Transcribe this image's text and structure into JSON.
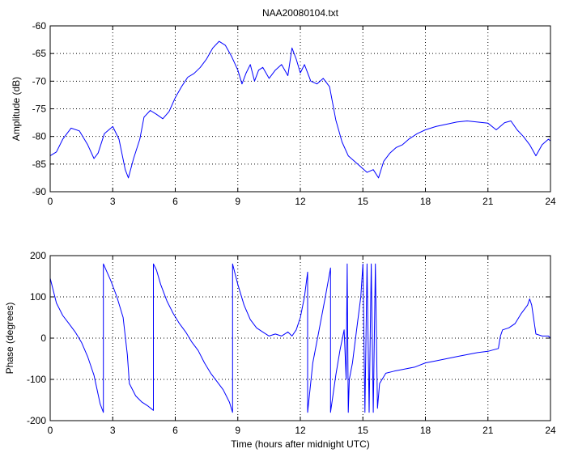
{
  "chart_data": [
    {
      "type": "line",
      "title": "NAA20080104.txt",
      "xlabel": "",
      "ylabel": "Amplitude (dB)",
      "xlim": [
        0,
        24
      ],
      "ylim": [
        -90,
        -60
      ],
      "xticks": [
        0,
        3,
        6,
        9,
        12,
        15,
        18,
        21,
        24
      ],
      "yticks": [
        -90,
        -85,
        -80,
        -75,
        -70,
        -65,
        -60
      ],
      "grid": true,
      "color": "#0000ff",
      "series": [
        {
          "x": [
            0,
            0.3,
            0.6,
            1.0,
            1.4,
            1.8,
            2.1,
            2.3,
            2.6,
            3.0,
            3.3,
            3.6,
            3.75,
            4.0,
            4.3,
            4.5,
            4.8,
            5.1,
            5.4,
            5.7,
            6.0,
            6.3,
            6.6,
            6.9,
            7.2,
            7.5,
            7.8,
            8.1,
            8.4,
            8.7,
            9.0,
            9.2,
            9.4,
            9.6,
            9.8,
            10.0,
            10.2,
            10.5,
            10.8,
            11.1,
            11.4,
            11.6,
            11.8,
            12.0,
            12.2,
            12.5,
            12.8,
            13.1,
            13.4,
            13.7,
            14.0,
            14.3,
            14.6,
            14.9,
            15.2,
            15.5,
            15.75,
            16.0,
            16.3,
            16.6,
            16.9,
            17.2,
            17.6,
            18.0,
            18.5,
            19.0,
            19.5,
            20.0,
            20.5,
            21.0,
            21.4,
            21.8,
            22.1,
            22.4,
            22.7,
            23.0,
            23.3,
            23.6,
            23.9,
            24.0
          ],
          "y": [
            -83.5,
            -82.8,
            -80.5,
            -78.5,
            -79.0,
            -81.5,
            -84.0,
            -83.0,
            -79.5,
            -78.2,
            -80.5,
            -86.0,
            -87.5,
            -84.0,
            -80.5,
            -76.5,
            -75.3,
            -76.0,
            -76.8,
            -75.5,
            -73.0,
            -71.0,
            -69.3,
            -68.6,
            -67.5,
            -66.0,
            -64.0,
            -62.8,
            -63.5,
            -65.5,
            -68.0,
            -70.5,
            -68.5,
            -67.0,
            -70.0,
            -68.0,
            -67.5,
            -69.5,
            -68.0,
            -67.0,
            -69.0,
            -64.0,
            -66.0,
            -68.5,
            -67.0,
            -70.0,
            -70.5,
            -69.5,
            -71.0,
            -77.0,
            -81.0,
            -83.5,
            -84.5,
            -85.5,
            -86.5,
            -86.0,
            -87.5,
            -84.5,
            -83.0,
            -82.0,
            -81.5,
            -80.5,
            -79.5,
            -78.8,
            -78.2,
            -77.8,
            -77.4,
            -77.2,
            -77.4,
            -77.6,
            -78.8,
            -77.5,
            -77.2,
            -78.8,
            -80.0,
            -81.5,
            -83.5,
            -81.5,
            -80.5,
            -80.8
          ]
        }
      ]
    },
    {
      "type": "line",
      "title": "",
      "xlabel": "Time (hours after midnight UTC)",
      "ylabel": "Phase (degrees)",
      "xlim": [
        0,
        24
      ],
      "ylim": [
        -200,
        200
      ],
      "xticks": [
        0,
        3,
        6,
        9,
        12,
        15,
        18,
        21,
        24
      ],
      "yticks": [
        -200,
        -100,
        0,
        100,
        200
      ],
      "grid": true,
      "color": "#0000ff",
      "series": [
        {
          "x": [
            0,
            0.3,
            0.6,
            0.9,
            1.2,
            1.5,
            1.8,
            2.1,
            2.4,
            2.55,
            2.55,
            2.9,
            3.2,
            3.5,
            3.7,
            3.8,
            4.1,
            4.4,
            4.7,
            4.95,
            4.95,
            5.1,
            5.3,
            5.6,
            5.9,
            6.2,
            6.5,
            6.8,
            7.1,
            7.4,
            7.7,
            8.0,
            8.3,
            8.6,
            8.75,
            8.75,
            9.0,
            9.3,
            9.6,
            9.9,
            10.2,
            10.5,
            10.8,
            11.1,
            11.4,
            11.6,
            11.8,
            12.0,
            12.2,
            12.35,
            12.35,
            12.6,
            12.9,
            13.2,
            13.45,
            13.45,
            13.7,
            13.9,
            14.1,
            14.2,
            14.25,
            14.3,
            14.35,
            14.5,
            14.7,
            14.9,
            15.0,
            15.1,
            15.2,
            15.3,
            15.4,
            15.5,
            15.6,
            15.7,
            15.8,
            16.1,
            16.5,
            17.0,
            17.5,
            18.0,
            18.5,
            19.0,
            19.5,
            20.0,
            20.5,
            21.0,
            21.5,
            21.6,
            21.7,
            22.0,
            22.3,
            22.6,
            22.9,
            23.0,
            23.1,
            23.3,
            23.6,
            23.9,
            24.0
          ],
          "y": [
            145,
            85,
            55,
            35,
            15,
            -10,
            -45,
            -90,
            -160,
            -180,
            180,
            140,
            100,
            50,
            -40,
            -110,
            -140,
            -155,
            -165,
            -175,
            180,
            165,
            130,
            90,
            60,
            35,
            15,
            -10,
            -30,
            -60,
            -85,
            -105,
            -125,
            -155,
            -180,
            180,
            130,
            80,
            45,
            25,
            15,
            5,
            10,
            5,
            15,
            5,
            20,
            50,
            100,
            160,
            -180,
            -60,
            20,
            100,
            170,
            -180,
            -90,
            -30,
            20,
            -100,
            180,
            -180,
            -100,
            -60,
            20,
            100,
            180,
            -180,
            180,
            -180,
            180,
            -180,
            180,
            -170,
            -110,
            -85,
            -80,
            -75,
            -70,
            -60,
            -55,
            -50,
            -45,
            -40,
            -35,
            -32,
            -25,
            5,
            20,
            25,
            35,
            60,
            80,
            95,
            80,
            10,
            5,
            5,
            0
          ]
        }
      ]
    }
  ]
}
